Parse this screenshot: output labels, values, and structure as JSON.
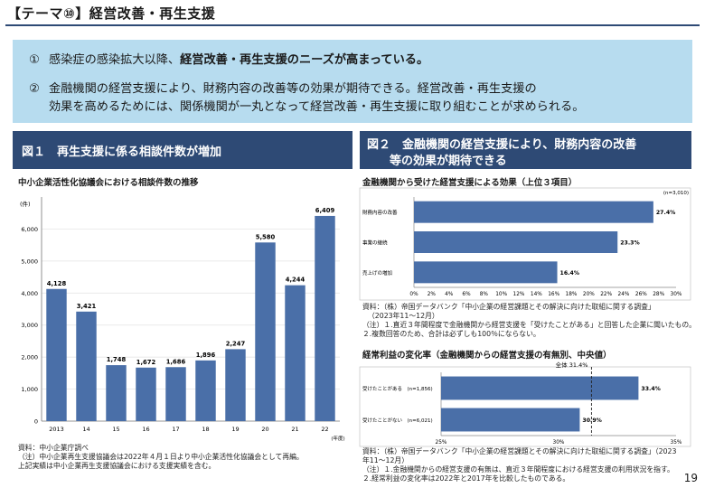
{
  "header": {
    "title": "【テーマ⑩】経営改善・再生支援"
  },
  "summary": {
    "item1_num": "①",
    "item1_pre": "感染症の感染拡大以降、",
    "item1_bold": "経営改善・再生支援のニーズが高まっている。",
    "item2_num": "②",
    "item2_line1": "金融機関の経営支援により、財務内容の改善等の効果が期待できる。経営改善・再生支援の",
    "item2_line2": "効果を高めるためには、関係機関が一丸となって経営改善・再生支援に取り組むことが求められる。"
  },
  "fig1": {
    "header": "図１　再生支援に係る相談件数が増加",
    "subtitle": "中小企業活性化協議会における相談件数の推移",
    "notes": [
      "資料：中小企業庁調べ",
      "（注）中小企業再生支援協議会は2022年４月１日より中小企業活性化協議会として再編。",
      "上記実績は中小企業再生支援協議会における支援実績を含む。"
    ]
  },
  "fig2": {
    "header_line1": "図２　金融機関の経営支援により、財務内容の改善",
    "header_line2": "等の効果が期待できる",
    "subtitle_a": "金融機関から受けた経営支援による効果（上位３項目）",
    "notes_a": [
      "資料：（株）帝国データバンク「中小企業の経営課題とその解決に向けた取組に関する調査」",
      "（2023年11～12月）",
      "（注）１.直近３年間程度で金融機関から経営支援を「受けたことがある」と回答した企業に聞いたもの。",
      "２.複数回答のため、合計は必ずしも100％にならない。"
    ],
    "subtitle_b": "経常利益の変化率（金融機関からの経営支援の有無別、中央値）",
    "notes_b": [
      "資料：（株）帝国データバンク「中小企業の経営課題とその解決に向けた取組に関する調査」（2023",
      "年11～12月）",
      "（注）１.金融機関からの経営支援の有無は、直近３年間程度における経営支援の利用状況を指す。",
      "２.経常利益の変化率は2022年と2017年を比較したものである。"
    ]
  },
  "page_number": "19",
  "colors": {
    "navy": "#2e4a75",
    "bar": "#4a6fa8",
    "box": "#b7dcef"
  },
  "chart_data": [
    {
      "type": "bar",
      "unit_label": "(件)",
      "xlabel": "(年度)",
      "categories": [
        "2013",
        "14",
        "15",
        "16",
        "17",
        "18",
        "19",
        "20",
        "21",
        "22"
      ],
      "values": [
        4128,
        3421,
        1748,
        1672,
        1686,
        1896,
        2247,
        5580,
        4244,
        6409
      ],
      "data_labels": [
        "4,128",
        "3,421",
        "1,748",
        "1,672",
        "1,686",
        "1,896",
        "2,247",
        "5,580",
        "4,244",
        "6,409"
      ],
      "yticks": [
        "0",
        "1,000",
        "2,000",
        "3,000",
        "4,000",
        "5,000",
        "6,000"
      ],
      "ylim": [
        0,
        7000
      ]
    },
    {
      "type": "bar",
      "orientation": "horizontal",
      "n_label": "(n=3,010)",
      "categories": [
        "財務内容の改善",
        "事業の継続",
        "売上げの増加"
      ],
      "values": [
        27.4,
        23.3,
        16.4
      ],
      "data_labels": [
        "27.4%",
        "23.3%",
        "16.4%"
      ],
      "xticks": [
        "0%",
        "2%",
        "4%",
        "6%",
        "8%",
        "10%",
        "12%",
        "14%",
        "16%",
        "18%",
        "20%",
        "22%",
        "24%",
        "26%",
        "28%",
        "30%"
      ],
      "xlim": [
        0,
        30
      ]
    },
    {
      "type": "bar",
      "orientation": "horizontal",
      "categories": [
        "受けたことがある　(n=1,856)",
        "受けたことがない　(n=6,021)"
      ],
      "values": [
        33.4,
        30.9
      ],
      "data_labels": [
        "33.4%",
        "30.9%"
      ],
      "xticks": [
        "25%",
        "30%",
        "35%"
      ],
      "xlim": [
        25,
        35
      ],
      "reference_label": "全体 31.4%",
      "reference_value": 31.4
    }
  ]
}
